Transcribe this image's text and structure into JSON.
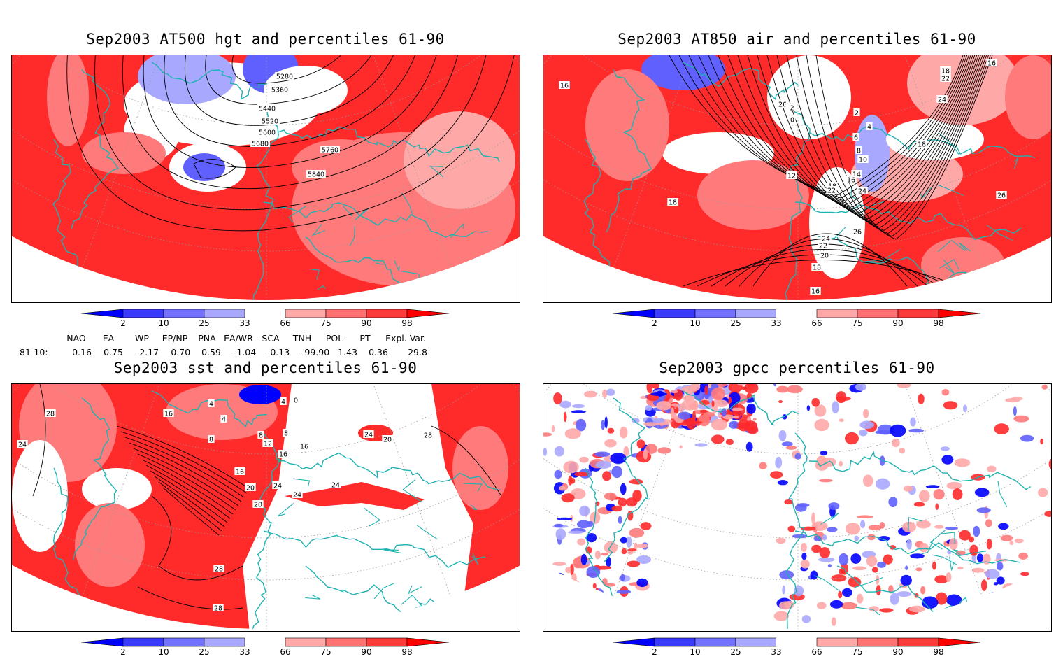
{
  "panels": [
    {
      "id": "p1",
      "title": "Sep2003 AT500 hgt and percentiles 61-90",
      "contour_labels": [
        "5280",
        "5360",
        "5440",
        "5520",
        "5600",
        "5680",
        "5760",
        "5840"
      ]
    },
    {
      "id": "p2",
      "title": "Sep2003 AT850 air and percentiles 61-90",
      "contour_labels": [
        "16",
        "18",
        "22",
        "24",
        "26",
        "-2",
        "0",
        "2",
        "4",
        "6",
        "8",
        "10",
        "12",
        "14",
        "16",
        "18",
        "22",
        "24",
        "26",
        "24",
        "22",
        "20",
        "18",
        "16",
        "18",
        "16",
        "18",
        "26"
      ]
    },
    {
      "id": "p3",
      "title": "Sep2003 sst and percentiles 61-90",
      "contour_labels": [
        "28",
        "24",
        "16",
        "4",
        "4",
        "8",
        "8",
        "12",
        "16",
        "20",
        "24",
        "28",
        "28",
        "16",
        "16",
        "20",
        "24",
        "24",
        "20",
        "24",
        "28",
        "8",
        "0",
        "4"
      ]
    },
    {
      "id": "p4",
      "title": "Sep2003 gpcc percentiles 61-90",
      "contour_labels": []
    }
  ],
  "legend": {
    "labels": [
      "2",
      "10",
      "25",
      "33",
      "66",
      "75",
      "90",
      "98"
    ],
    "colors_below": [
      "#0000ff",
      "#3a3aff",
      "#7272ff",
      "#a8a8ff"
    ],
    "colors_above": [
      "#ffa8a8",
      "#ff7272",
      "#ff3a3a",
      "#ff0000"
    ]
  },
  "indices": {
    "headers": [
      "NAO",
      "EA",
      "WP",
      "EP/NP",
      "PNA",
      "EA/WR",
      "SCA",
      "TNH",
      "POL",
      "PT",
      "Expl. Var."
    ],
    "row_label": "81-10:",
    "values": [
      "0.16",
      "0.75",
      "-2.17",
      "-0.70",
      "0.59",
      "-1.04",
      "-0.13",
      "-99.90",
      "1.43",
      "0.36",
      "29.8"
    ]
  },
  "colors": {
    "land_outline": "#20b2b2",
    "warm": "#ff2020",
    "cold": "#3030ff"
  }
}
